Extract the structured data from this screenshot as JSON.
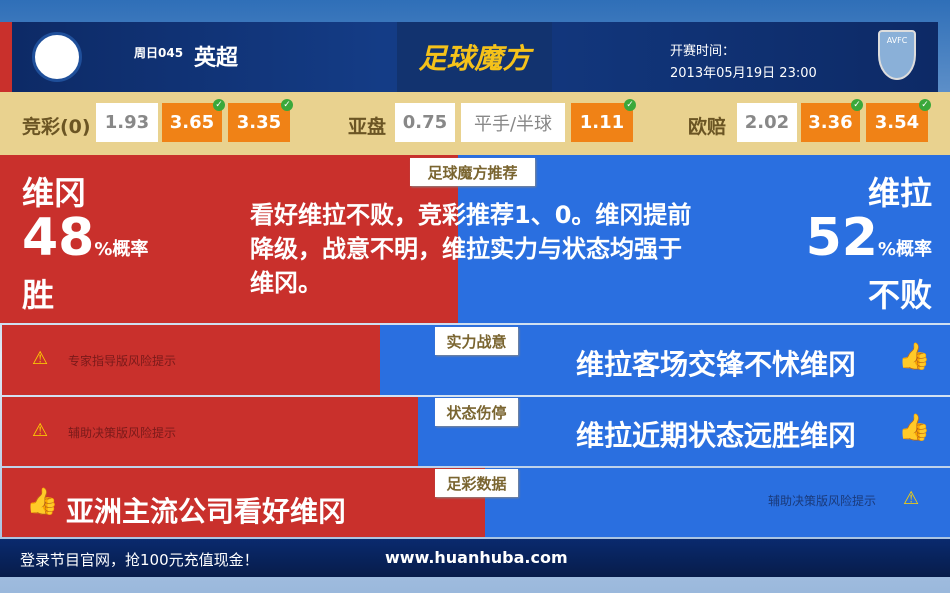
{
  "header": {
    "match_no": "周日045",
    "league": "英超",
    "logo": "足球魔方",
    "kickoff_label": "开赛时间：",
    "kickoff_time": "2013年05月19日 23:00",
    "home_crest": "WIGAN ATHLETIC",
    "away_crest": "AVFC"
  },
  "odds": {
    "jingcai": {
      "label": "竞彩(0)",
      "values": [
        "1.93",
        "3.65",
        "3.35"
      ]
    },
    "yapan": {
      "label": "亚盘",
      "values": [
        "0.75",
        "平手/半球",
        "1.11"
      ]
    },
    "oupei": {
      "label": "欧赔",
      "values": [
        "2.02",
        "3.36",
        "3.54"
      ]
    }
  },
  "recommend": {
    "tag": "足球魔方推荐",
    "home": "维冈",
    "home_pct": "48",
    "away": "维拉",
    "away_pct": "52",
    "pct_suffix": "%概率",
    "home_result": "胜",
    "away_result": "不败",
    "text": "看好维拉不败，竞彩推荐1、0。维冈提前降级，战意不明，维拉实力与状态均强于维冈。",
    "home_share": 48,
    "away_share": 52
  },
  "rows": [
    {
      "tag": "实力战意",
      "left": "专家指导版风险提示",
      "right": "维拉客场交锋不怵维冈"
    },
    {
      "tag": "状态伤停",
      "left": "辅助决策版风险提示",
      "right": "维拉近期状态远胜维冈"
    },
    {
      "tag": "足彩数据",
      "left": "亚洲主流公司看好维冈",
      "right": "辅助决策版风险提示"
    }
  ],
  "footer": {
    "promo": "登录节目官网，抢100元充值现金！",
    "url": "www.huanhuba.com"
  },
  "colors": {
    "home": "#c9302c",
    "away": "#2a6fe0",
    "highlight": "#f08216"
  }
}
